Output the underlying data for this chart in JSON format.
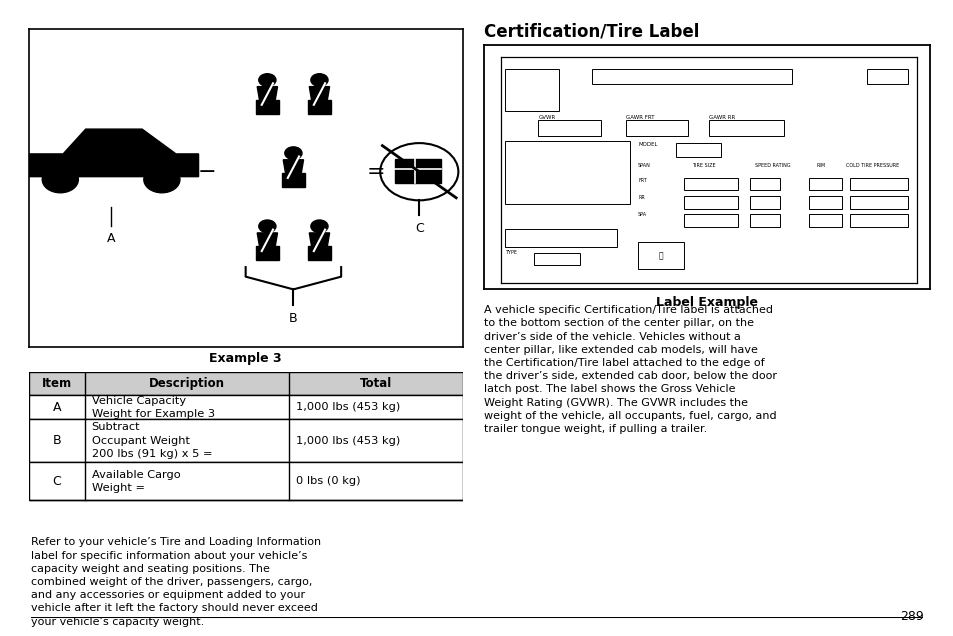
{
  "title": "Certification/Tire Label",
  "bg_color": "#ffffff",
  "page_num": "289",
  "example_caption": "Example 3",
  "table_headers": [
    "Item",
    "Description",
    "Total"
  ],
  "table_rows": [
    [
      "A",
      "Vehicle Capacity\nWeight for Example 3",
      "1,000 lbs (453 kg)"
    ],
    [
      "B",
      "Subtract\nOccupant Weight\n200 lbs (91 kg) x 5 =",
      "1,000 lbs (453 kg)"
    ],
    [
      "C",
      "Available Cargo\nWeight =",
      "0 lbs (0 kg)"
    ]
  ],
  "body_text": "Refer to your vehicle’s Tire and Loading Information\nlabel for specific information about your vehicle’s\ncapacity weight and seating positions. The\ncombined weight of the driver, passengers, cargo,\nand any accessories or equipment added to your\nvehicle after it left the factory should never exceed\nyour vehicle’s capacity weight.",
  "right_body_text": "A vehicle specific Certification/Tire label is attached\nto the bottom section of the center pillar, on the\ndriver’s side of the vehicle. Vehicles without a\ncenter pillar, like extended cab models, will have\nthe Certification/Tire label attached to the edge of\nthe driver’s side, extended cab door, below the door\nlatch post. The label shows the Gross Vehicle\nWeight Rating (GVWR). The GVWR includes the\nweight of the vehicle, all occupants, fuel, cargo, and\ntrailer tongue weight, if pulling a trailer.",
  "label_example_caption": "Label Example"
}
